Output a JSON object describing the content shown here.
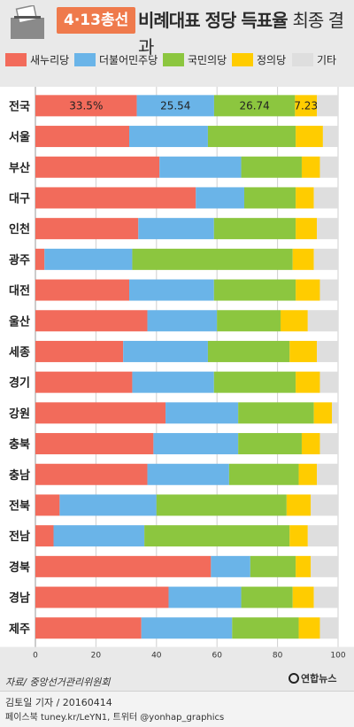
{
  "header": {
    "election_tag": "4·13총선",
    "title_main": "비례대표 정당 득표율",
    "title_sub": "최종 결과"
  },
  "colors": {
    "새누리당": "#f26b5b",
    "더불어민주당": "#6ab4e8",
    "국민의당": "#8cc63f",
    "정의당": "#ffcc00",
    "기타": "#dedede",
    "tag": "#ef7a4c"
  },
  "chart_data": {
    "type": "bar",
    "orientation": "horizontal",
    "stacked": true,
    "categories": [
      "전국",
      "서울",
      "부산",
      "대구",
      "인천",
      "광주",
      "대전",
      "울산",
      "세종",
      "경기",
      "강원",
      "충북",
      "충남",
      "전북",
      "전남",
      "경북",
      "경남",
      "제주"
    ],
    "series": [
      {
        "name": "새누리당",
        "values": [
          33.5,
          31,
          41,
          53,
          34,
          3,
          31,
          37,
          29,
          32,
          43,
          39,
          37,
          8,
          6,
          58,
          44,
          35
        ]
      },
      {
        "name": "더불어민주당",
        "values": [
          25.54,
          26,
          27,
          16,
          25,
          29,
          28,
          23,
          28,
          27,
          24,
          28,
          27,
          32,
          30,
          13,
          24,
          30
        ]
      },
      {
        "name": "국민의당",
        "values": [
          26.74,
          29,
          20,
          17,
          27,
          53,
          27,
          21,
          27,
          27,
          25,
          21,
          23,
          43,
          48,
          15,
          17,
          22
        ]
      },
      {
        "name": "정의당",
        "values": [
          7.23,
          9,
          6,
          6,
          7,
          7,
          8,
          9,
          9,
          8,
          6,
          6,
          6,
          8,
          6,
          5,
          7,
          7
        ]
      },
      {
        "name": "기타",
        "values": [
          7.0,
          5,
          6,
          8,
          7,
          8,
          6,
          10,
          7,
          6,
          2,
          6,
          7,
          9,
          10,
          9,
          8,
          6
        ]
      }
    ],
    "data_labels": {
      "전국": [
        "33.5%",
        "25.54",
        "26.74",
        "7.23"
      ]
    },
    "xlim": [
      0,
      100
    ],
    "xticks": [
      0,
      20,
      40,
      60,
      80,
      100
    ],
    "legend": [
      "새누리당",
      "더불어민주당",
      "국민의당",
      "정의당",
      "기타"
    ],
    "legend_position": "top"
  },
  "footer": {
    "source": "자료/ 중앙선거관리위원회",
    "credit": "김토일 기자 / 20160414",
    "social": "페이스북 tuney.kr/LeYN1, 트위터 @yonhap_graphics",
    "logo": "연합뉴스"
  }
}
